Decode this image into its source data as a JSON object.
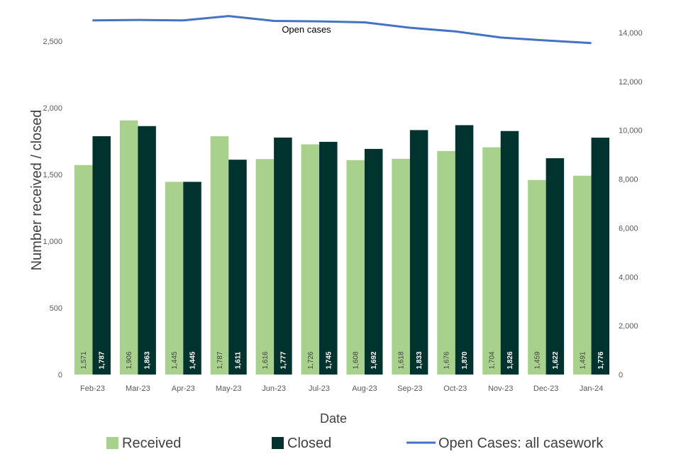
{
  "chart_data": {
    "type": "bar",
    "categories": [
      "Feb-23",
      "Mar-23",
      "Apr-23",
      "May-23",
      "Jun-23",
      "Jul-23",
      "Aug-23",
      "Sep-23",
      "Oct-23",
      "Nov-23",
      "Dec-23",
      "Jan-24"
    ],
    "series": [
      {
        "name": "Received",
        "kind": "bar",
        "axis": "left",
        "color": "#a9d18e",
        "values": [
          1571,
          1906,
          1445,
          1787,
          1616,
          1726,
          1608,
          1618,
          1676,
          1704,
          1459,
          1491
        ],
        "labels": [
          "1,571",
          "1,906",
          "1,445",
          "1,787",
          "1,616",
          "1,726",
          "1,608",
          "1,618",
          "1,676",
          "1,704",
          "1,459",
          "1,491"
        ]
      },
      {
        "name": "Closed",
        "kind": "bar",
        "axis": "left",
        "color": "#00332e",
        "values": [
          1787,
          1863,
          1445,
          1611,
          1777,
          1745,
          1692,
          1833,
          1870,
          1826,
          1622,
          1776
        ],
        "labels": [
          "1,787",
          "1,863",
          "1,445",
          "1,611",
          "1,777",
          "1,745",
          "1,692",
          "1,833",
          "1,870",
          "1,826",
          "1,622",
          "1,776"
        ]
      },
      {
        "name": "Open Cases: all casework",
        "kind": "line",
        "axis": "right",
        "color": "#4472c4",
        "values": [
          14500,
          14520,
          14500,
          14680,
          14480,
          14460,
          14420,
          14200,
          14050,
          13800,
          13680,
          13570
        ]
      }
    ],
    "xlabel": "Date",
    "ylabel": "Number received / closed",
    "ylim": [
      0,
      2500
    ],
    "yticks": [
      0,
      500,
      1000,
      1500,
      2000,
      2500
    ],
    "ytick_labels": [
      "0",
      "500",
      "1,000",
      "1,500",
      "2,000",
      "2,500"
    ],
    "y2lim": [
      0,
      14000
    ],
    "y2ticks": [
      0,
      2000,
      4000,
      6000,
      8000,
      10000,
      12000,
      14000
    ],
    "y2tick_labels": [
      "0",
      "2,000",
      "4,000",
      "6,000",
      "8,000",
      "10,000",
      "12,000",
      "14,000"
    ],
    "annotation": "Open cases",
    "legend": [
      "Received",
      "Closed",
      "Open Cases: all casework"
    ],
    "legend_position": "bottom",
    "grid": false
  }
}
